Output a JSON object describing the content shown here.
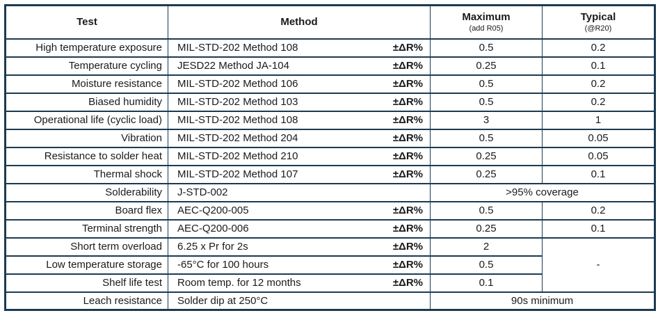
{
  "table": {
    "headers": {
      "test": "Test",
      "method": "Method",
      "maximum": "Maximum",
      "maximum_sub": "(add R05)",
      "typical": "Typical",
      "typical_sub": "(@R20)"
    },
    "rows": [
      {
        "test": "High temperature exposure",
        "method": "MIL-STD-202 Method 108",
        "delta": "±ΔR%",
        "maximum": "0.5",
        "typical": "0.2"
      },
      {
        "test": "Temperature cycling",
        "method": "JESD22 Method JA-104",
        "delta": "±ΔR%",
        "maximum": "0.25",
        "typical": "0.1"
      },
      {
        "test": "Moisture resistance",
        "method": "MIL-STD-202 Method 106",
        "delta": "±ΔR%",
        "maximum": "0.5",
        "typical": "0.2"
      },
      {
        "test": "Biased humidity",
        "method": "MIL-STD-202 Method 103",
        "delta": "±ΔR%",
        "maximum": "0.5",
        "typical": "0.2"
      },
      {
        "test": "Operational life (cyclic load)",
        "method": "MIL-STD-202 Method 108",
        "delta": "±ΔR%",
        "maximum": "3",
        "typical": "1"
      },
      {
        "test": "Vibration",
        "method": "MIL-STD-202 Method 204",
        "delta": "±ΔR%",
        "maximum": "0.5",
        "typical": "0.05"
      },
      {
        "test": "Resistance to solder heat",
        "method": "MIL-STD-202 Method 210",
        "delta": "±ΔR%",
        "maximum": "0.25",
        "typical": "0.05"
      },
      {
        "test": "Thermal shock",
        "method": "MIL-STD-202 Method 107",
        "delta": "±ΔR%",
        "maximum": "0.25",
        "typical": "0.1"
      },
      {
        "test": "Solderability",
        "method": "J-STD-002",
        "delta": "",
        "span": ">95% coverage"
      },
      {
        "test": "Board flex",
        "method": "AEC-Q200-005",
        "delta": "±ΔR%",
        "maximum": "0.5",
        "typical": "0.2"
      },
      {
        "test": "Terminal strength",
        "method": "AEC-Q200-006",
        "delta": "±ΔR%",
        "maximum": "0.25",
        "typical": "0.1"
      },
      {
        "test": "Short term overload",
        "method": "6.25 x Pr for 2s",
        "delta": "±ΔR%",
        "maximum": "2",
        "typical": "-",
        "typical_rowspan": 3
      },
      {
        "test": "Low temperature storage",
        "method": "-65°C for 100 hours",
        "delta": "±ΔR%",
        "maximum": "0.5",
        "typical_merged": true
      },
      {
        "test": "Shelf life test",
        "method": "Room temp. for 12 months",
        "delta": "±ΔR%",
        "maximum": "0.1",
        "typical_merged": true
      },
      {
        "test": "Leach resistance",
        "method": "Solder dip at 250°C",
        "delta": "",
        "span": "90s minimum"
      }
    ],
    "colors": {
      "border": "#1c3a50",
      "text": "#1a1a1a",
      "background": "#ffffff"
    }
  }
}
